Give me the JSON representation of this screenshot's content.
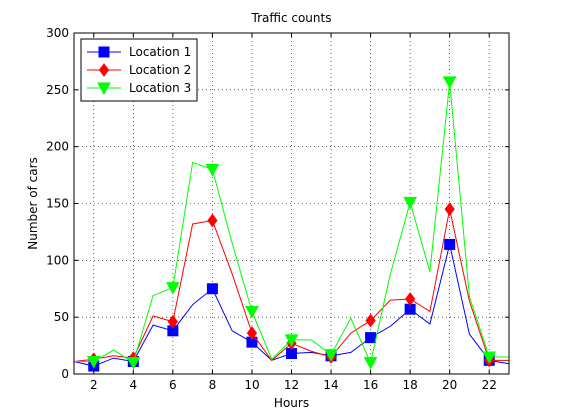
{
  "chart_data": {
    "type": "line",
    "title": "Traffic counts",
    "xlabel": "Hours",
    "ylabel": "Number of cars",
    "xlim": [
      1,
      23
    ],
    "ylim": [
      0,
      300
    ],
    "x_ticks": [
      2,
      4,
      6,
      8,
      10,
      12,
      14,
      16,
      18,
      20,
      22
    ],
    "y_ticks": [
      0,
      50,
      100,
      150,
      200,
      250,
      300
    ],
    "grid": true,
    "legend_position": "top-left",
    "x": [
      1,
      2,
      3,
      4,
      5,
      6,
      7,
      8,
      9,
      10,
      11,
      12,
      13,
      14,
      15,
      16,
      17,
      18,
      19,
      20,
      21,
      22,
      23
    ],
    "marker_every": 2,
    "marker_start_x": 2,
    "series": [
      {
        "name": "Location 1",
        "color": "#0000ff",
        "marker": "square",
        "values": [
          11,
          7,
          14,
          11,
          43,
          38,
          61,
          75,
          38,
          28,
          12,
          18,
          19,
          16,
          19,
          32,
          42,
          57,
          44,
          114,
          35,
          12,
          9
        ]
      },
      {
        "name": "Location 2",
        "color": "#ff0000",
        "marker": "diamond",
        "values": [
          11,
          13,
          16,
          14,
          51,
          46,
          132,
          135,
          88,
          36,
          12,
          27,
          20,
          15,
          36,
          47,
          65,
          66,
          55,
          145,
          64,
          12,
          12
        ]
      },
      {
        "name": "Location 3",
        "color": "#00ff00",
        "marker": "triangle-down",
        "values": [
          11,
          11,
          21,
          10,
          69,
          76,
          186,
          180,
          115,
          55,
          13,
          30,
          30,
          17,
          49,
          10,
          88,
          151,
          90,
          257,
          68,
          15,
          15
        ]
      }
    ]
  }
}
